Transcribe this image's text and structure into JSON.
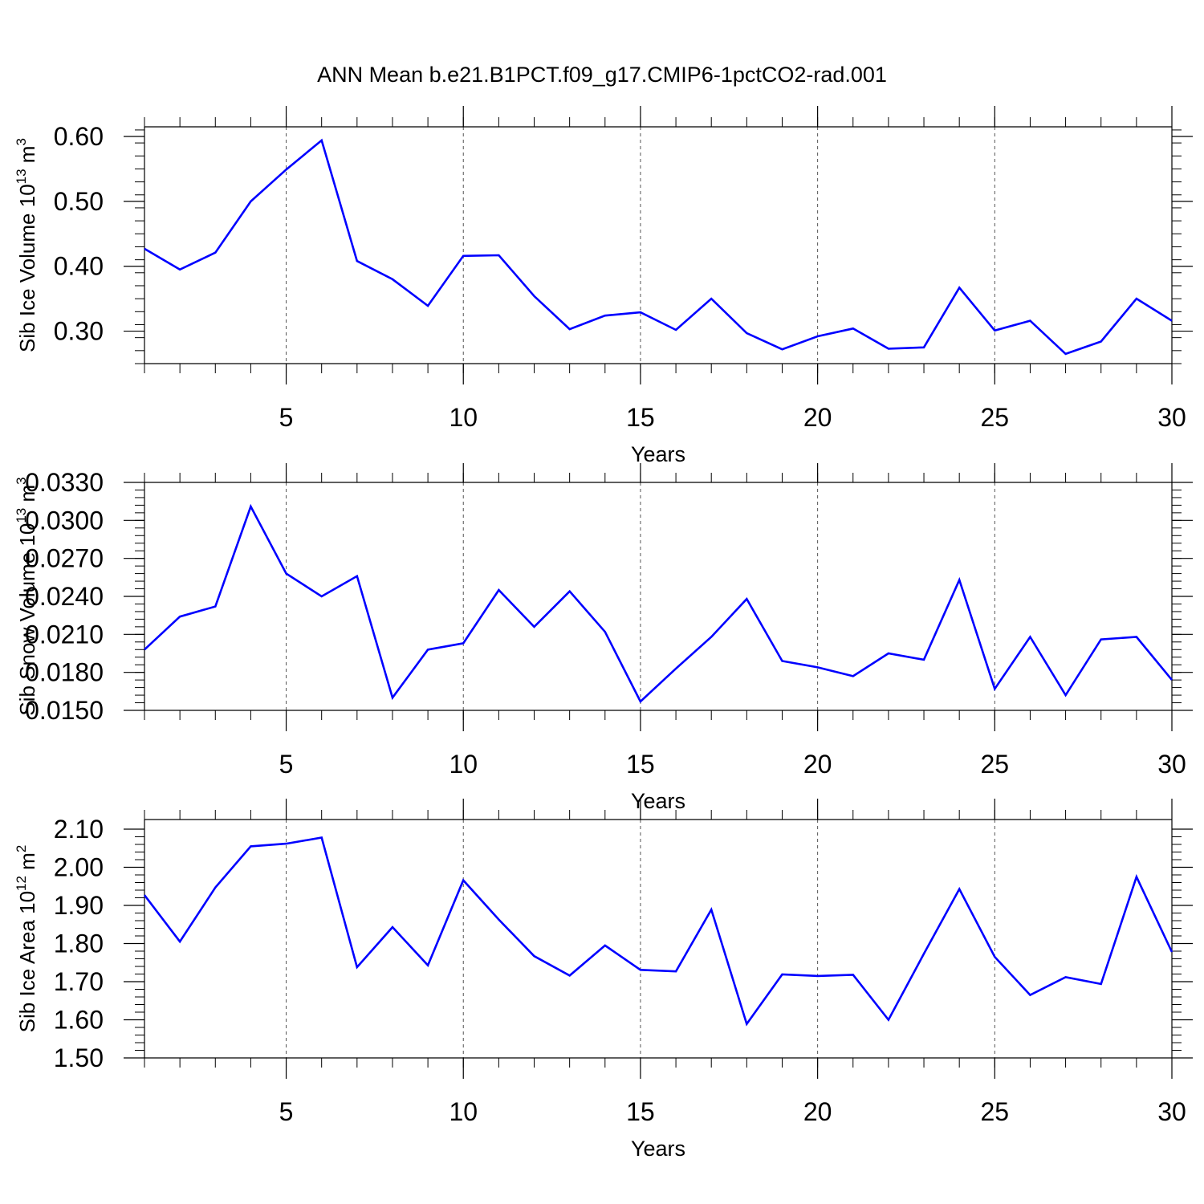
{
  "figure": {
    "title": "ANN Mean b.e21.B1PCT.f09_g17.CMIP6-1pctCO2-rad.001"
  },
  "chart_data": [
    {
      "type": "line",
      "title": "",
      "xlabel": "Years",
      "ylabel": "Sib Ice Volume",
      "ylabel_unit_base": "10",
      "ylabel_unit_exp": "13",
      "ylabel_unit_suffix": " m",
      "ylabel_unit_suffix_exp": "3",
      "xlim": [
        1,
        30
      ],
      "ylim": [
        0.25,
        0.6
      ],
      "xticks": [
        5,
        10,
        15,
        20,
        25,
        30
      ],
      "yticks": [
        0.3,
        0.4,
        0.5,
        0.6
      ],
      "ytick_labels": [
        "0.30",
        "0.40",
        "0.50",
        "0.60"
      ],
      "y_minor_step": 0.02,
      "grid": "vertical dashed at major x ticks",
      "line_color": "#0000ff",
      "x": [
        1,
        2,
        3,
        4,
        5,
        6,
        7,
        8,
        9,
        10,
        11,
        12,
        13,
        14,
        15,
        16,
        17,
        18,
        19,
        20,
        21,
        22,
        23,
        24,
        25,
        26,
        27,
        28,
        29,
        30
      ],
      "values": [
        0.427,
        0.395,
        0.421,
        0.5,
        0.549,
        0.594,
        0.408,
        0.38,
        0.339,
        0.416,
        0.417,
        0.354,
        0.303,
        0.324,
        0.329,
        0.302,
        0.35,
        0.297,
        0.272,
        0.292,
        0.304,
        0.273,
        0.275,
        0.367,
        0.301,
        0.316,
        0.265,
        0.284,
        0.35,
        0.316
      ]
    },
    {
      "type": "line",
      "title": "",
      "xlabel": "Years",
      "ylabel": "Sib Snow Volume",
      "ylabel_unit_base": "10",
      "ylabel_unit_exp": "13",
      "ylabel_unit_suffix": " m",
      "ylabel_unit_suffix_exp": "3",
      "xlim": [
        1,
        30
      ],
      "ylim": [
        0.015,
        0.033
      ],
      "xticks": [
        5,
        10,
        15,
        20,
        25,
        30
      ],
      "yticks": [
        0.015,
        0.018,
        0.021,
        0.024,
        0.027,
        0.03,
        0.033
      ],
      "ytick_labels": [
        "0.0150",
        "0.0180",
        "0.0210",
        "0.0240",
        "0.0270",
        "0.0300",
        "0.0330"
      ],
      "y_minor_step": 0.0006,
      "grid": "vertical dashed at major x ticks",
      "line_color": "#0000ff",
      "x": [
        1,
        2,
        3,
        4,
        5,
        6,
        7,
        8,
        9,
        10,
        11,
        12,
        13,
        14,
        15,
        16,
        17,
        18,
        19,
        20,
        21,
        22,
        23,
        24,
        25,
        26,
        27,
        28,
        29,
        30
      ],
      "values": [
        0.0198,
        0.0224,
        0.0232,
        0.0311,
        0.0258,
        0.024,
        0.0256,
        0.016,
        0.0198,
        0.0203,
        0.0245,
        0.0216,
        0.0244,
        0.0212,
        0.0157,
        0.0183,
        0.0208,
        0.0238,
        0.0189,
        0.0184,
        0.0177,
        0.0195,
        0.019,
        0.0253,
        0.0167,
        0.0208,
        0.0162,
        0.0206,
        0.0208,
        0.0174
      ]
    },
    {
      "type": "line",
      "title": "",
      "xlabel": "Years",
      "ylabel": "Sib Ice Area",
      "ylabel_unit_base": "10",
      "ylabel_unit_exp": "12",
      "ylabel_unit_suffix": " m",
      "ylabel_unit_suffix_exp": "2",
      "xlim": [
        1,
        30
      ],
      "ylim": [
        1.5,
        2.1
      ],
      "xticks": [
        5,
        10,
        15,
        20,
        25,
        30
      ],
      "yticks": [
        1.5,
        1.6,
        1.7,
        1.8,
        1.9,
        2.0,
        2.1
      ],
      "ytick_labels": [
        "1.50",
        "1.60",
        "1.70",
        "1.80",
        "1.90",
        "2.00",
        "2.10"
      ],
      "y_minor_step": 0.02,
      "grid": "vertical dashed at major x ticks",
      "line_color": "#0000ff",
      "x": [
        1,
        2,
        3,
        4,
        5,
        6,
        7,
        8,
        9,
        10,
        11,
        12,
        13,
        14,
        15,
        16,
        17,
        18,
        19,
        20,
        21,
        22,
        23,
        24,
        25,
        26,
        27,
        28,
        29,
        30
      ],
      "values": [
        1.927,
        1.805,
        1.947,
        2.055,
        2.062,
        2.078,
        1.738,
        1.843,
        1.743,
        1.966,
        1.863,
        1.767,
        1.716,
        1.795,
        1.731,
        1.727,
        1.889,
        1.589,
        1.719,
        1.715,
        1.718,
        1.6,
        1.773,
        1.943,
        1.765,
        1.665,
        1.712,
        1.694,
        1.975,
        1.778
      ]
    }
  ]
}
